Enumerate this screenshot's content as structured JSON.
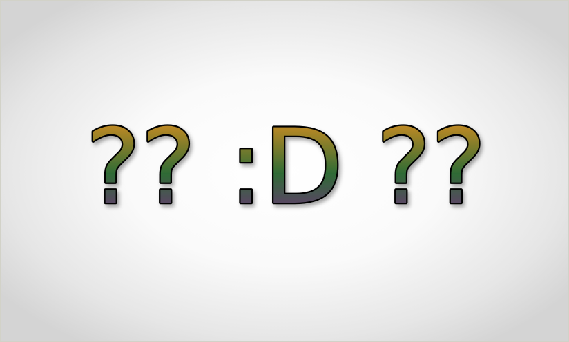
{
  "artwork": {
    "text": "?? :D ??",
    "colors": {
      "top": "#f2941e",
      "middle": "#2e6b35",
      "bottom": "#7a2a86",
      "outline": "#000000",
      "background_center": "#ffffff",
      "background_edge": "#d4d4d4"
    }
  }
}
